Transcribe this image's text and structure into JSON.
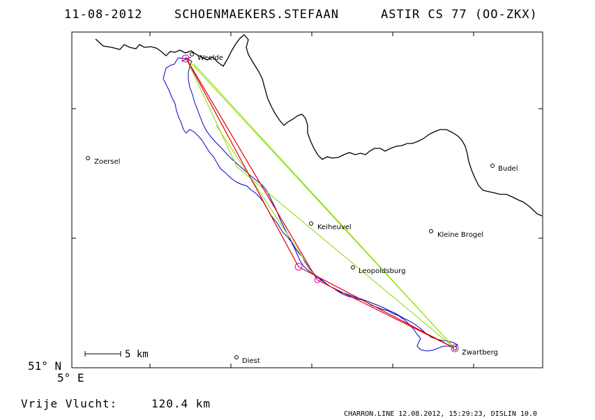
{
  "header": {
    "date": "11-08-2012",
    "pilot": "SCHOENMAEKERS.STEFAAN",
    "glider": "ASTIR CS 77 (OO-ZKX)"
  },
  "map": {
    "lat_label": "51° N",
    "lon_label": "5° E",
    "scale_label": "5 km",
    "track_color": "#0000cc",
    "task_color": "#dd0000",
    "optimized_color": "#88dd00",
    "turnpoint_color": "#cc00cc",
    "border_color": "#000000"
  },
  "places": [
    {
      "name": "Weelde"
    },
    {
      "name": "Zoersel"
    },
    {
      "name": "Budel"
    },
    {
      "name": "Keiheuvel"
    },
    {
      "name": "Kleine Brogel"
    },
    {
      "name": "Leopoldsburg"
    },
    {
      "name": "Zwartberg"
    },
    {
      "name": "Diest"
    }
  ],
  "summary": {
    "distance_label": "Vrije Vlucht:",
    "distance_value": "120.4 km"
  },
  "footer": {
    "credit": "CHARRON.LINE 12.08.2012, 15:29:23, DISLIN 10.0"
  }
}
